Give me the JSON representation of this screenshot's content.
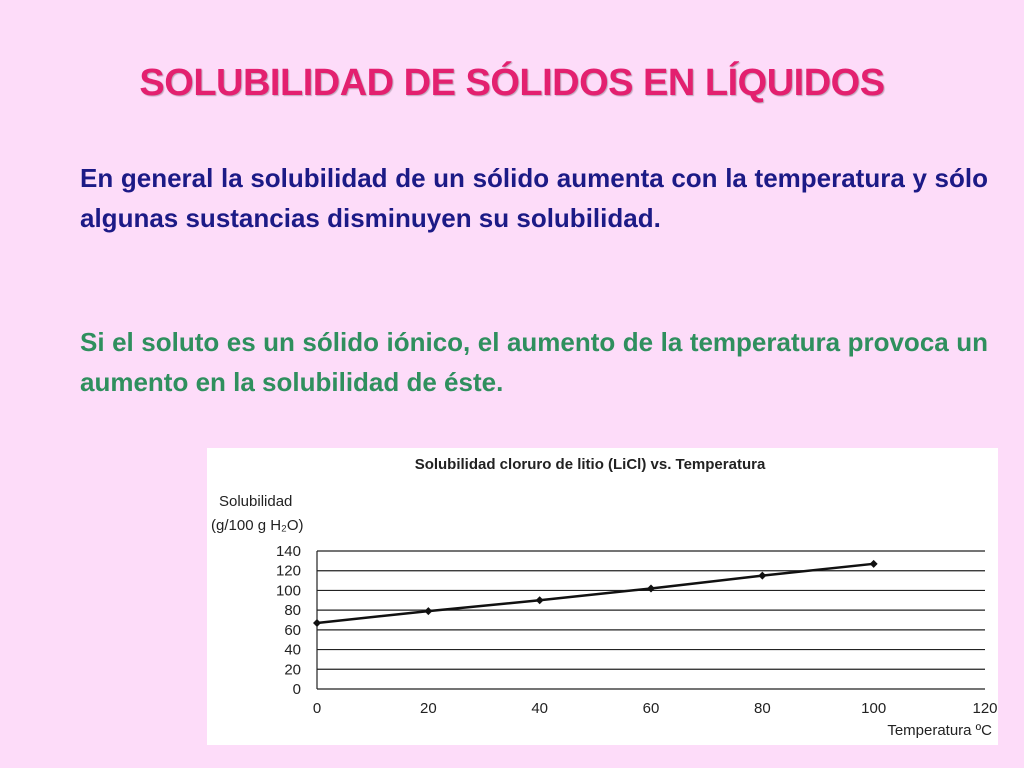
{
  "title": "SOLUBILIDAD DE SÓLIDOS EN LÍQUIDOS",
  "paragraphs": [
    "En general la solubilidad de un sólido aumenta con la temperatura y sólo algunas sustancias disminuyen su solubilidad.",
    "Si el soluto es un sólido iónico, el aumento de la temperatura provoca un aumento en la solubilidad de éste."
  ],
  "chart_data": {
    "type": "line",
    "title": "Solubilidad cloruro de litio (LiCl) vs. Temperatura",
    "ylabel": [
      "Solubilidad",
      "(g/100 g H₂O)"
    ],
    "xlabel": "Temperatura ºC",
    "x": [
      0,
      20,
      40,
      60,
      80,
      100
    ],
    "values": [
      67,
      79,
      90,
      102,
      115,
      127
    ],
    "color": "#111111",
    "xlim": [
      0,
      120
    ],
    "xticks": [
      0,
      20,
      40,
      60,
      80,
      100,
      120
    ],
    "ylim": [
      0,
      140
    ],
    "yticks": [
      0,
      20,
      40,
      60,
      80,
      100,
      120,
      140
    ],
    "grid": true
  }
}
